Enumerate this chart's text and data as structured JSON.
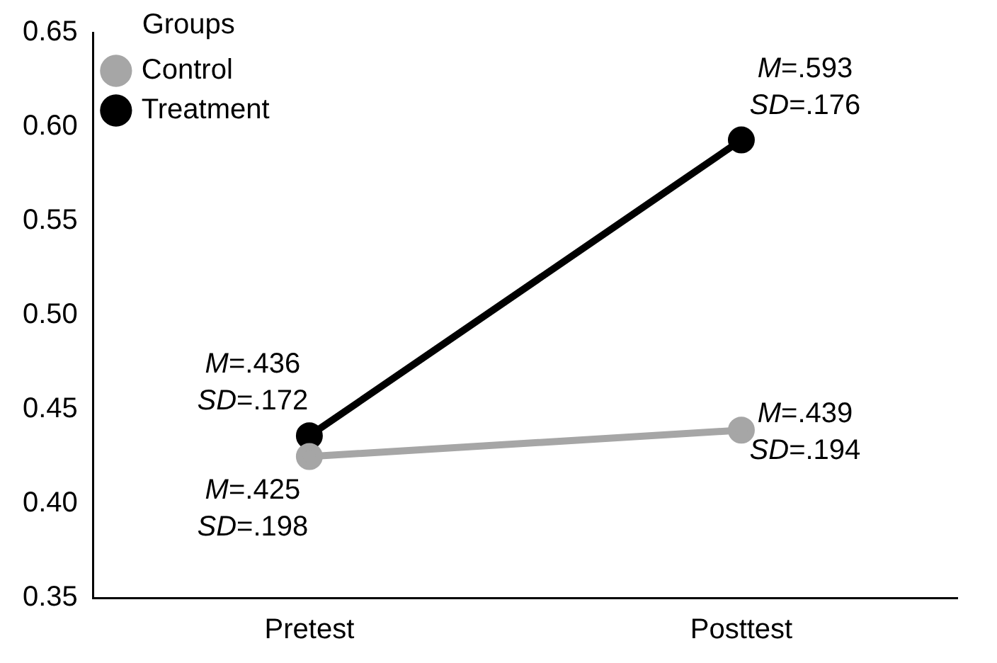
{
  "chart_data": {
    "type": "line",
    "categories": [
      "Pretest",
      "Posttest"
    ],
    "series": [
      {
        "name": "Control",
        "color": "#a6a6a6",
        "values": [
          0.425,
          0.439
        ]
      },
      {
        "name": "Treatment",
        "color": "#000000",
        "values": [
          0.436,
          0.593
        ]
      }
    ],
    "ylim": [
      0.35,
      0.65
    ],
    "yticks": [
      0.35,
      {
        "value": 0.4,
        "label": "0.40"
      },
      0.45,
      {
        "value": 0.5,
        "label": "0.50"
      },
      0.55,
      {
        "value": 0.6,
        "label": "0.60"
      },
      0.65
    ],
    "grid": false,
    "legend": "top left",
    "legend_title": "Groups",
    "marker": "circle",
    "line_style": "solid",
    "annotations": [
      {
        "text": "M=.436\nSD=.172",
        "x": "Pretest",
        "y": 0.436
      },
      {
        "text": "M=.425\nSD=.198",
        "x": "Pretest",
        "y": 0.425
      },
      {
        "text": "M=.593\nSD=.176",
        "x": "Posttest",
        "y": 0.593
      },
      {
        "text": "M=.439\nSD=.194",
        "x": "Posttest",
        "y": 0.439
      }
    ]
  }
}
